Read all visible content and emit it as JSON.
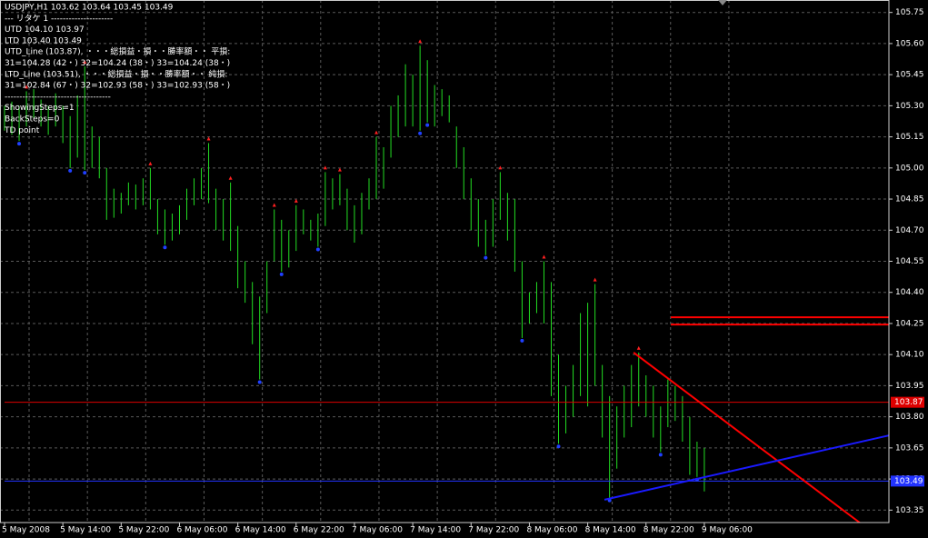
{
  "chart_data": {
    "type": "ohlc",
    "info_lines": [
      "USDJPY,H1  103.62 103.64 103.45 103.49",
      "---  リタケ 1  ---------------------",
      "UTD  104.10  103.97",
      "LTD  103.40  103.49",
      "UTD_Line (103.87), ・・・総損益・損・・勝率額・・ 平損:",
      "31=104.28 (42・) 32=104.24 (38・) 33=104.24 (38・)",
      "LTD_Line (103.51), ・・・総損益・損・・勝率額・・ 純損:",
      "31=102.84 (67・) 32=102.93 (58・) 33=102.93 (58・)",
      "------------------------------------",
      "ShowingSteps=1",
      "BackSteps=0",
      "TD point"
    ],
    "categories": [
      "5 May 2008",
      null,
      null,
      null,
      null,
      null,
      null,
      null,
      "5 May 14:00",
      null,
      null,
      null,
      null,
      null,
      null,
      null,
      "5 May 22:00",
      null,
      null,
      null,
      null,
      null,
      null,
      null,
      "6 May 06:00",
      null,
      null,
      null,
      null,
      null,
      null,
      null,
      "6 May 14:00",
      null,
      null,
      null,
      null,
      null,
      null,
      null,
      "6 May 22:00",
      null,
      null,
      null,
      null,
      null,
      null,
      null,
      "7 May 06:00",
      null,
      null,
      null,
      null,
      null,
      null,
      null,
      "7 May 14:00",
      null,
      null,
      null,
      null,
      null,
      null,
      null,
      "7 May 22:00",
      null,
      null,
      null,
      null,
      null,
      null,
      null,
      "8 May 06:00",
      null,
      null,
      null,
      null,
      null,
      null,
      null,
      "8 May 14:00",
      null,
      null,
      null,
      null,
      null,
      null,
      null,
      "8 May 22:00",
      null,
      null,
      null,
      null,
      null,
      null,
      null,
      "9 May 06:00"
    ],
    "series": [
      {
        "name": "high",
        "color": "#22dd22",
        "values": [
          105.3,
          105.32,
          105.3,
          105.37,
          105.38,
          105.33,
          105.3,
          105.36,
          105.3,
          105.25,
          105.35,
          105.49,
          105.2,
          105.15,
          105.0,
          104.9,
          104.88,
          104.93,
          104.92,
          104.95,
          105.0,
          104.85,
          104.8,
          104.78,
          104.82,
          104.9,
          104.95,
          105.0,
          105.12,
          104.9,
          104.85,
          104.93,
          104.72,
          104.55,
          104.45,
          104.38,
          104.55,
          104.8,
          104.75,
          104.7,
          104.82,
          104.8,
          104.75,
          104.78,
          104.98,
          104.95,
          104.97,
          104.9,
          104.82,
          104.88,
          104.95,
          105.15,
          105.1,
          105.3,
          105.35,
          105.5,
          105.45,
          105.59,
          105.52,
          105.4,
          105.38,
          105.35,
          105.2,
          105.1,
          104.95,
          104.85,
          104.75,
          104.85,
          104.98,
          104.88,
          104.85,
          104.55,
          104.4,
          104.45,
          104.55,
          104.45,
          104.1,
          103.95,
          104.05,
          104.3,
          104.35,
          104.44,
          104.05,
          103.9,
          103.85,
          103.95,
          104.05,
          104.11,
          104.0,
          103.95,
          103.85,
          103.98,
          103.95,
          103.9,
          103.8,
          103.68,
          103.65
        ]
      },
      {
        "name": "low",
        "color": "#22dd22",
        "values": [
          105.18,
          105.16,
          105.13,
          105.2,
          105.24,
          105.2,
          105.16,
          105.2,
          105.12,
          105.0,
          105.05,
          104.99,
          105.0,
          104.95,
          104.75,
          104.76,
          104.78,
          104.82,
          104.8,
          104.82,
          104.8,
          104.68,
          104.63,
          104.65,
          104.68,
          104.75,
          104.82,
          104.85,
          104.83,
          104.7,
          104.65,
          104.6,
          104.42,
          104.35,
          104.15,
          103.98,
          104.3,
          104.55,
          104.5,
          104.52,
          104.6,
          104.68,
          104.65,
          104.62,
          104.72,
          104.8,
          104.82,
          104.7,
          104.64,
          104.68,
          104.8,
          104.85,
          104.9,
          105.05,
          105.15,
          105.2,
          105.2,
          105.18,
          105.22,
          105.2,
          105.25,
          105.22,
          105.0,
          104.85,
          104.7,
          104.62,
          104.58,
          104.62,
          104.75,
          104.65,
          104.5,
          104.18,
          104.25,
          104.3,
          104.25,
          103.9,
          103.67,
          103.72,
          103.8,
          103.9,
          103.85,
          103.95,
          103.7,
          103.41,
          103.55,
          103.7,
          103.75,
          103.85,
          103.8,
          103.7,
          103.63,
          103.75,
          103.78,
          103.68,
          103.52,
          103.51,
          103.44
        ]
      },
      {
        "name": "up_fractals",
        "color": "#ff2020",
        "values": [
          null,
          null,
          null,
          105.37,
          null,
          null,
          null,
          null,
          null,
          null,
          null,
          105.49,
          null,
          null,
          null,
          null,
          null,
          null,
          null,
          null,
          105.0,
          null,
          null,
          null,
          null,
          null,
          null,
          null,
          105.12,
          null,
          null,
          104.93,
          null,
          null,
          null,
          null,
          null,
          104.8,
          null,
          null,
          104.82,
          null,
          null,
          null,
          104.98,
          null,
          104.97,
          null,
          null,
          null,
          null,
          105.15,
          null,
          null,
          null,
          null,
          null,
          105.59,
          null,
          null,
          null,
          null,
          null,
          null,
          null,
          null,
          null,
          null,
          104.98,
          null,
          null,
          null,
          null,
          null,
          104.55,
          null,
          null,
          null,
          null,
          null,
          null,
          104.44,
          null,
          null,
          null,
          null,
          null,
          104.11,
          null,
          null,
          null,
          null,
          null,
          null,
          null,
          null,
          null
        ]
      },
      {
        "name": "down_fractals",
        "color": "#2040ff",
        "values": [
          null,
          null,
          105.13,
          null,
          null,
          null,
          null,
          null,
          null,
          105.0,
          null,
          104.99,
          null,
          null,
          null,
          null,
          null,
          null,
          null,
          null,
          null,
          null,
          104.63,
          null,
          null,
          null,
          null,
          null,
          null,
          null,
          null,
          null,
          null,
          null,
          null,
          103.98,
          null,
          null,
          104.5,
          null,
          null,
          null,
          null,
          104.62,
          null,
          null,
          null,
          null,
          null,
          null,
          null,
          null,
          null,
          null,
          null,
          null,
          null,
          105.18,
          105.22,
          null,
          null,
          null,
          null,
          null,
          null,
          null,
          104.58,
          null,
          null,
          null,
          null,
          104.18,
          null,
          null,
          null,
          null,
          103.67,
          null,
          null,
          null,
          null,
          null,
          null,
          103.41,
          null,
          null,
          null,
          null,
          null,
          null,
          103.63,
          null,
          null,
          null,
          null,
          103.51,
          null
        ]
      }
    ],
    "levels": [
      {
        "value": 104.28,
        "color": "#ff0000",
        "start": 91.4
      },
      {
        "value": 104.245,
        "color": "#ff0000",
        "start": 91.4
      },
      {
        "value": 103.87,
        "color": "#dd0000",
        "start": 0,
        "label": "103.87"
      },
      {
        "value": 103.49,
        "color": "#2233ff",
        "start": 0,
        "label": "103.49"
      }
    ],
    "trend_lines": [
      {
        "color": "#ff0000",
        "x": [
          86.3,
          117.3
        ],
        "y": [
          104.11,
          103.29
        ]
      },
      {
        "color": "#1a1aff",
        "x": [
          82.3,
          121.3
        ],
        "y": [
          103.4,
          103.71
        ]
      }
    ],
    "ylim": [
      103.29,
      105.81
    ],
    "yticks": [
      {
        "value": 105.75,
        "label": "105.75"
      },
      {
        "value": 105.6,
        "label": "105.60"
      },
      {
        "value": 105.45,
        "label": "105.45"
      },
      {
        "value": 105.3,
        "label": "105.30"
      },
      {
        "value": 105.15,
        "label": "105.15"
      },
      {
        "value": 105.0,
        "label": "105.00"
      },
      {
        "value": 104.85,
        "label": "104.85"
      },
      {
        "value": 104.7,
        "label": "104.70"
      },
      {
        "value": 104.55,
        "label": "104.55"
      },
      {
        "value": 104.4,
        "label": "104.40"
      },
      {
        "value": 104.25,
        "label": "104.25"
      },
      {
        "value": 104.1,
        "label": "104.10"
      },
      {
        "value": 103.95,
        "label": "103.95"
      },
      {
        "value": 103.8,
        "label": "103.80"
      },
      {
        "value": 103.65,
        "label": "103.65"
      },
      {
        "value": 103.5,
        "label": "103.50"
      },
      {
        "value": 103.35,
        "label": "103.35"
      }
    ],
    "grid": true
  }
}
